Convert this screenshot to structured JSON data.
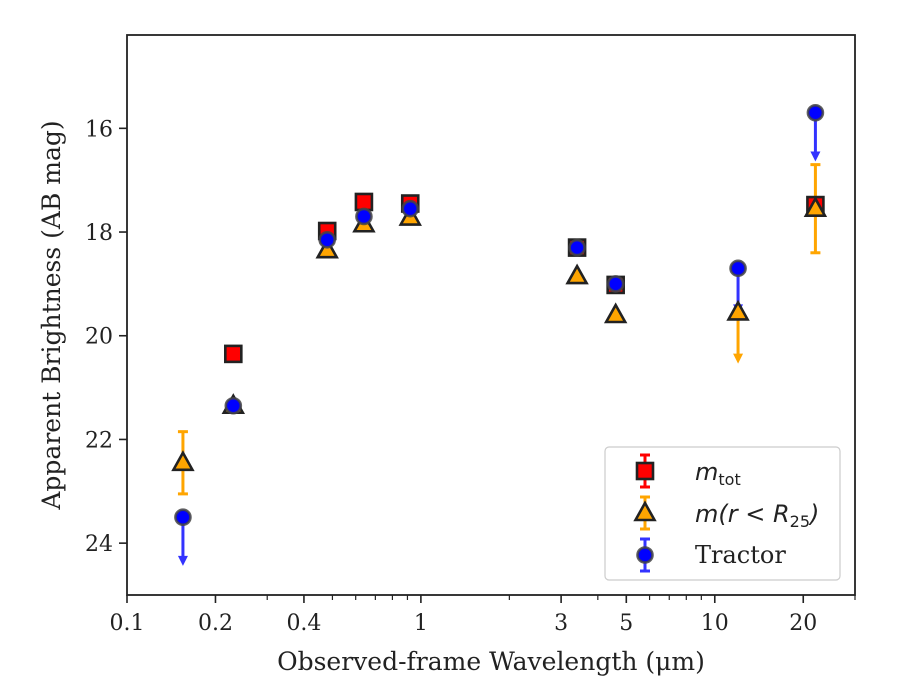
{
  "chart_data": {
    "type": "scatter",
    "xlabel": "Observed-frame Wavelength (μm)",
    "ylabel": "Apparent Brightness (AB mag)",
    "x_scale": "log",
    "xlim": [
      0.1,
      30
    ],
    "ylim": [
      25.0,
      14.2
    ],
    "y_inverted": true,
    "x_ticks": [
      {
        "value": 0.1,
        "label": "0.1"
      },
      {
        "value": 0.2,
        "label": "0.2"
      },
      {
        "value": 0.4,
        "label": "0.4"
      },
      {
        "value": 1,
        "label": "1"
      },
      {
        "value": 3,
        "label": "3"
      },
      {
        "value": 5,
        "label": "5"
      },
      {
        "value": 10,
        "label": "10"
      },
      {
        "value": 20,
        "label": "20"
      }
    ],
    "x_minor_ticks": [
      0.3,
      0.5,
      0.6,
      0.7,
      0.8,
      0.9,
      2,
      4,
      6,
      7,
      8,
      9,
      30
    ],
    "y_ticks": [
      {
        "value": 16,
        "label": "16"
      },
      {
        "value": 18,
        "label": "18"
      },
      {
        "value": 20,
        "label": "20"
      },
      {
        "value": 22,
        "label": "22"
      },
      {
        "value": 24,
        "label": "24"
      }
    ],
    "grid": false,
    "legend_position": "lower-right",
    "series": [
      {
        "name": "m_tot",
        "legend_main": "m",
        "legend_sub": "tot",
        "marker": "square",
        "face": "#ff0000",
        "edge": "#222222",
        "errcolor": "#ff0000",
        "points": [
          {
            "x": 0.23,
            "y": 20.35
          },
          {
            "x": 0.48,
            "y": 17.98
          },
          {
            "x": 0.64,
            "y": 17.42
          },
          {
            "x": 0.92,
            "y": 17.45
          },
          {
            "x": 3.4,
            "y": 18.3
          },
          {
            "x": 4.6,
            "y": 19.02
          },
          {
            "x": 22.0,
            "y": 17.48
          }
        ]
      },
      {
        "name": "m(r < R25)",
        "legend_pre": "m(r < R",
        "legend_sub": "25",
        "legend_post": ")",
        "marker": "triangle",
        "face": "#ffa500",
        "edge": "#222222",
        "errcolor": "#ffa500",
        "points": [
          {
            "x": 0.155,
            "y": 22.45,
            "err": 0.6
          },
          {
            "x": 0.23,
            "y": 21.35
          },
          {
            "x": 0.48,
            "y": 18.35
          },
          {
            "x": 0.64,
            "y": 17.85
          },
          {
            "x": 0.92,
            "y": 17.72
          },
          {
            "x": 3.4,
            "y": 18.85
          },
          {
            "x": 4.6,
            "y": 19.6
          },
          {
            "x": 12.0,
            "y": 19.55,
            "upper_limit_to": 20.5
          },
          {
            "x": 22.0,
            "y": 17.55,
            "err": 0.85
          }
        ]
      },
      {
        "name": "Tractor",
        "marker": "circle",
        "face": "#0000ff",
        "edge": "#444444",
        "errcolor": "#3333ff",
        "points": [
          {
            "x": 0.155,
            "y": 23.5,
            "upper_limit_to": 24.4
          },
          {
            "x": 0.23,
            "y": 21.35
          },
          {
            "x": 0.48,
            "y": 18.15
          },
          {
            "x": 0.64,
            "y": 17.7
          },
          {
            "x": 0.92,
            "y": 17.55
          },
          {
            "x": 3.4,
            "y": 18.3
          },
          {
            "x": 4.6,
            "y": 19.0
          },
          {
            "x": 12.0,
            "y": 18.7,
            "upper_limit_to": 19.55
          },
          {
            "x": 22.0,
            "y": 15.7,
            "upper_limit_to": 16.6
          }
        ]
      }
    ],
    "legend_tractor_label": "Tractor"
  }
}
